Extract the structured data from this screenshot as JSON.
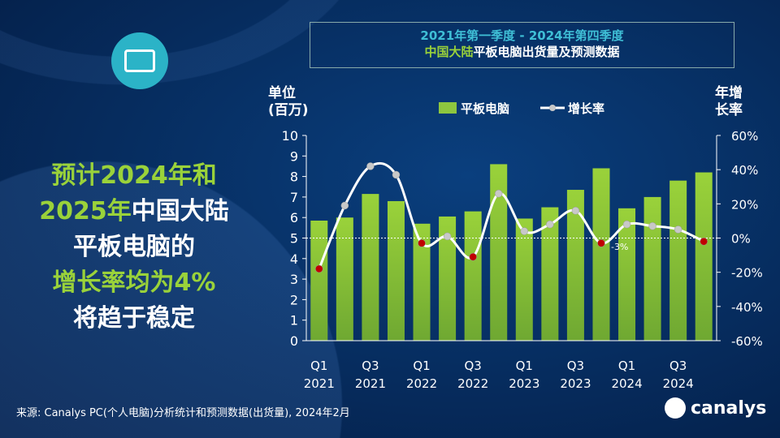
{
  "title": {
    "line1": "2021年第一季度 - 2024年第四季度",
    "line2_highlight": "中国大陆",
    "line2_rest": "平板电脑出货量及预测数据"
  },
  "headline": {
    "l1": "预计2024年和",
    "l2a": "2025年",
    "l2b": "中国大陆",
    "l3": "平板电脑的",
    "l4": "增长率均为4%",
    "l5": "将趋于稳定"
  },
  "left_axis_label": {
    "l1": "单位",
    "l2": "(百万)"
  },
  "right_axis_label": {
    "l1": "年增",
    "l2": "长率"
  },
  "source": "来源: Canalys PC(个人电脑)分析统计和预测数据(出货量), 2024年2月",
  "logo": "canalys",
  "icons": {
    "tablet": "tablet-icon"
  },
  "colors": {
    "bar": "#8dc63f",
    "line": "#ffffff",
    "negative_point": "#c00000",
    "positive_point": "#c8c8c8",
    "title_accent": "#3fbfd6"
  },
  "chart_data": {
    "type": "bar+line",
    "categories": [
      "Q1 2021",
      "Q2 2021",
      "Q3 2021",
      "Q4 2021",
      "Q1 2022",
      "Q2 2022",
      "Q3 2022",
      "Q4 2022",
      "Q1 2023",
      "Q2 2023",
      "Q3 2023",
      "Q4 2023",
      "Q1 2024",
      "Q2 2024",
      "Q3 2024",
      "Q4 2024"
    ],
    "x_tick_labels": [
      [
        "Q1",
        "2021"
      ],
      [
        "Q3",
        "2021"
      ],
      [
        "Q1",
        "2022"
      ],
      [
        "Q3",
        "2022"
      ],
      [
        "Q1",
        "2023"
      ],
      [
        "Q3",
        "2023"
      ],
      [
        "Q1",
        "2024"
      ],
      [
        "Q3",
        "2024"
      ]
    ],
    "series": [
      {
        "name": "平板电脑",
        "type": "bar",
        "axis": "left",
        "values": [
          5.85,
          6.0,
          7.15,
          6.8,
          5.7,
          6.05,
          6.3,
          8.6,
          5.95,
          6.5,
          7.35,
          8.4,
          6.45,
          7.0,
          7.8,
          8.2
        ]
      },
      {
        "name": "增长率",
        "type": "line",
        "axis": "right",
        "values": [
          -18,
          19,
          42,
          37,
          -3,
          1,
          -11,
          26,
          4,
          8,
          16,
          -3,
          8,
          7,
          5,
          -2
        ]
      }
    ],
    "annotations": [
      {
        "category": "Q4 2023",
        "text": "-3%"
      }
    ],
    "left_ylim": [
      0,
      10
    ],
    "left_ticks": [
      0,
      1,
      2,
      3,
      4,
      5,
      6,
      7,
      8,
      9,
      10
    ],
    "right_ylim": [
      -60,
      60
    ],
    "right_ticks": [
      "-60%",
      "-40%",
      "-20%",
      "0%",
      "20%",
      "40%",
      "60%"
    ],
    "legend": "top"
  }
}
